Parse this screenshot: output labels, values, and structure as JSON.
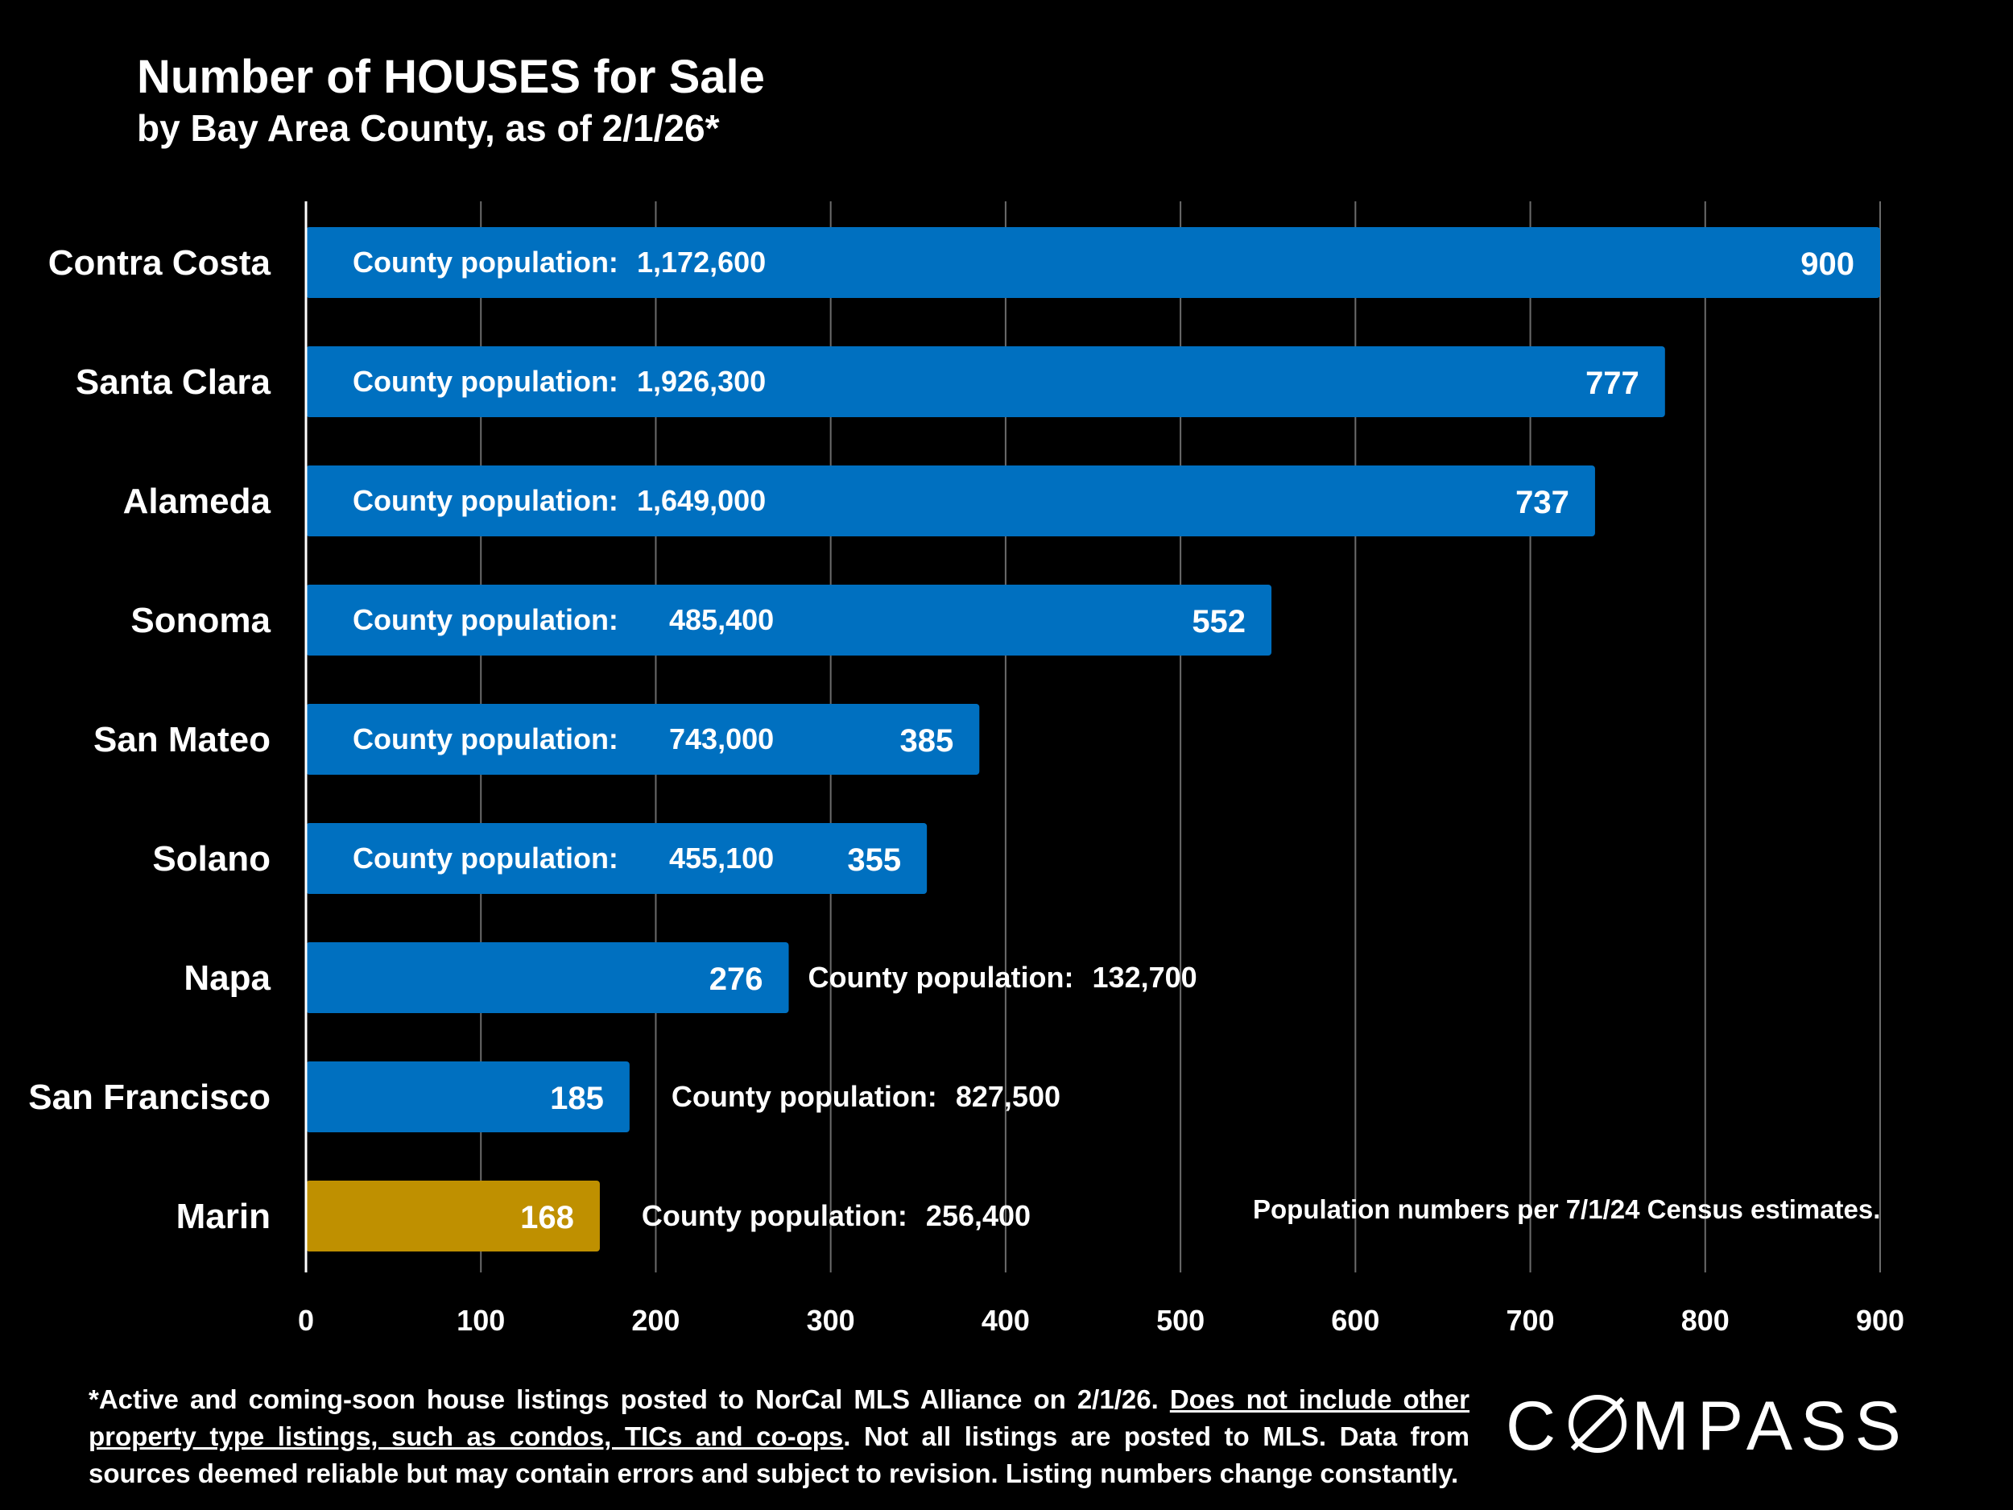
{
  "header": {
    "title": "Number of HOUSES for Sale",
    "subtitle": "by Bay Area County, as of 2/1/26*"
  },
  "chart_data": {
    "type": "bar",
    "orientation": "horizontal",
    "categories": [
      "Contra Costa",
      "Santa Clara",
      "Alameda",
      "Sonoma",
      "San Mateo",
      "Solano",
      "Napa",
      "San Francisco",
      "Marin"
    ],
    "values": [
      900,
      777,
      737,
      552,
      385,
      355,
      276,
      185,
      168
    ],
    "population_labels": [
      {
        "label": "County population:",
        "value": "1,172,600"
      },
      {
        "label": "County population:",
        "value": "1,926,300"
      },
      {
        "label": "County population:",
        "value": "1,649,000"
      },
      {
        "label": "County population:",
        "value": "485,400"
      },
      {
        "label": "County population:",
        "value": "743,000"
      },
      {
        "label": "County population:",
        "value": "455,100"
      },
      {
        "label": "County population:",
        "value": "132,700"
      },
      {
        "label": "County population:",
        "value": "827,500"
      },
      {
        "label": "County population:",
        "value": "256,400"
      }
    ],
    "highlight_category": "Marin",
    "xlim": [
      0,
      900
    ],
    "xticks": [
      0,
      100,
      200,
      300,
      400,
      500,
      600,
      700,
      800,
      900
    ],
    "grid": true,
    "annotation": "Population numbers per 7/1/24 Census estimates.",
    "colors": {
      "bar": "#0070C0",
      "highlight": "#BF9000",
      "grid": "#6b6b6b",
      "axis": "#ffffff",
      "text": "#ffffff"
    }
  },
  "footnote": {
    "part1": "*Active and coming-soon house listings posted to NorCal MLS Alliance on 2/1/26. ",
    "underlined": "Does not include other property type listings, such as condos, TICs and co-ops",
    "part2": ". Not all listings are posted to MLS. Data from sources deemed reliable but may contain errors and subject to revision. Listing numbers change constantly."
  },
  "logo": {
    "text": "COMPASS",
    "left": "C",
    "right": "MPASS"
  }
}
